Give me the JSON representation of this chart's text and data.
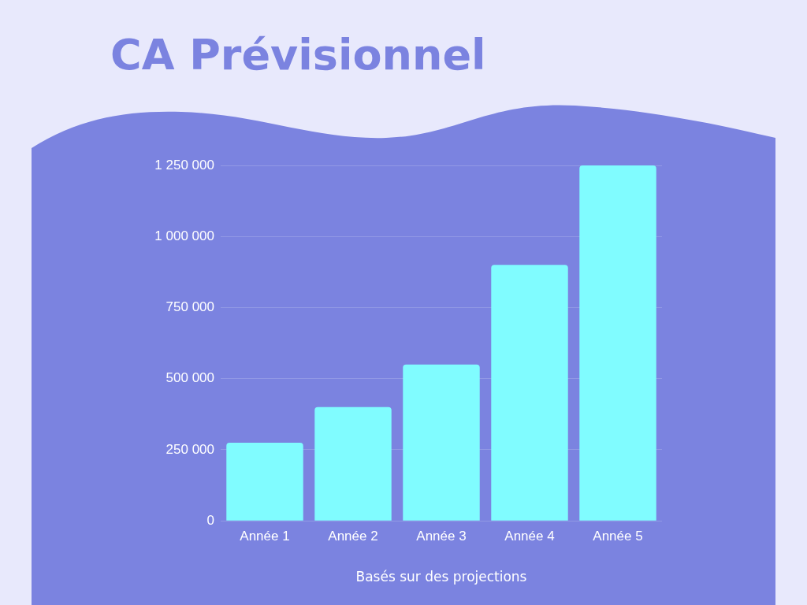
{
  "chart_data": {
    "type": "bar",
    "title": "CA Prévisionnel",
    "xlabel": "Basés sur des projections",
    "categories": [
      "Année 1",
      "Année 2",
      "Année 3",
      "Année 4",
      "Année 5"
    ],
    "values": [
      275000,
      400000,
      550000,
      900000,
      1250000
    ],
    "color": "#80fcff",
    "ylim": [
      0,
      1250000
    ],
    "yticks": [
      0,
      {
        "value": 250000,
        "label": "250 000"
      },
      {
        "value": 500000,
        "label": "500 000"
      },
      {
        "value": 750000,
        "label": "750 000"
      },
      {
        "value": 1000000,
        "label": "1 000 000"
      },
      {
        "value": 1250000,
        "label": "1 250 000"
      }
    ],
    "grid": "y"
  }
}
